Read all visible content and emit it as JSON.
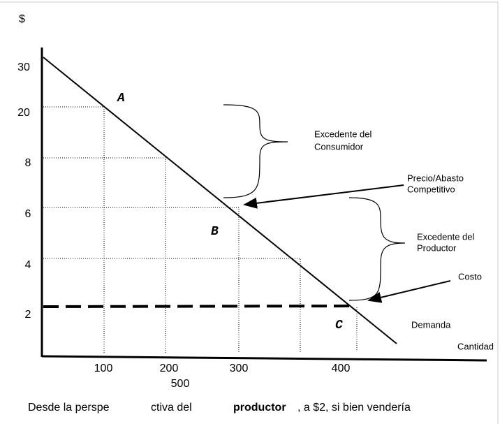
{
  "currency_label": "$",
  "y_labels": [
    "30",
    "20",
    "8",
    "6",
    "4",
    "2"
  ],
  "x_labels": [
    "100",
    "200",
    "300",
    "400"
  ],
  "x_extra_label": "500",
  "x_axis_label": "Cantidad",
  "curve_label": "Demanda",
  "points": [
    "A",
    "B",
    "C"
  ],
  "annotations": {
    "consumer_surplus": [
      "Excedente del",
      "Consumidor"
    ],
    "competitive_price": [
      "Precio/Abasto",
      "Competitivo"
    ],
    "producer_surplus": [
      "Excedente del",
      "Productor"
    ],
    "cost": "Costo"
  },
  "caption": [
    "Desde la perspe",
    "ctiva del",
    "productor",
    ", a $2, si bien vendería"
  ]
}
